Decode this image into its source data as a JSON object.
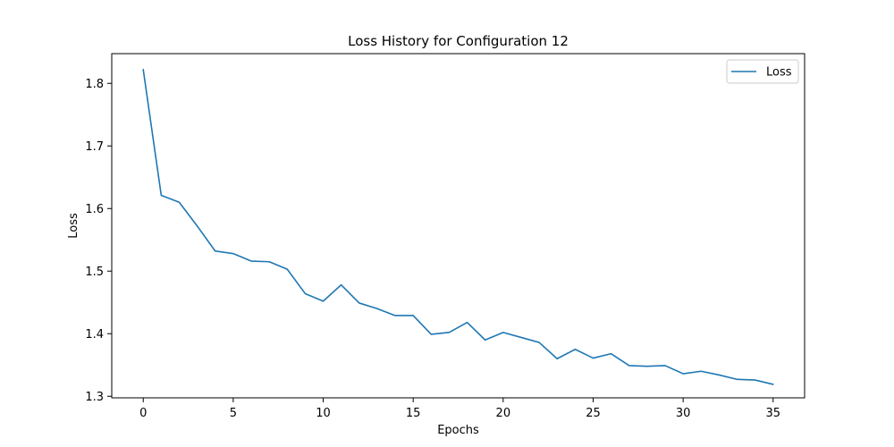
{
  "chart_data": {
    "type": "line",
    "title": "Loss History for Configuration 12",
    "xlabel": "Epochs",
    "ylabel": "Loss",
    "xlim": [
      -1.75,
      36.75
    ],
    "ylim": [
      1.2975,
      1.8475
    ],
    "xticks": [
      0,
      5,
      10,
      15,
      20,
      25,
      30,
      35
    ],
    "yticks": [
      1.3,
      1.4,
      1.5,
      1.6,
      1.7,
      1.8
    ],
    "ytick_labels": [
      "1.3",
      "1.4",
      "1.5",
      "1.6",
      "1.7",
      "1.8"
    ],
    "legend_position": "top-right",
    "grid": false,
    "series": [
      {
        "name": "Loss",
        "color": "#1f77b4",
        "x": [
          0,
          1,
          2,
          3,
          4,
          5,
          6,
          7,
          8,
          9,
          10,
          11,
          12,
          13,
          14,
          15,
          16,
          17,
          18,
          19,
          20,
          21,
          22,
          23,
          24,
          25,
          26,
          27,
          28,
          29,
          30,
          31,
          32,
          33,
          34,
          35
        ],
        "y": [
          1.822,
          1.621,
          1.61,
          1.572,
          1.532,
          1.528,
          1.516,
          1.515,
          1.503,
          1.464,
          1.452,
          1.478,
          1.449,
          1.44,
          1.429,
          1.429,
          1.399,
          1.402,
          1.418,
          1.39,
          1.402,
          1.394,
          1.386,
          1.36,
          1.375,
          1.361,
          1.368,
          1.349,
          1.348,
          1.349,
          1.336,
          1.34,
          1.334,
          1.327,
          1.326,
          1.319
        ]
      }
    ]
  }
}
